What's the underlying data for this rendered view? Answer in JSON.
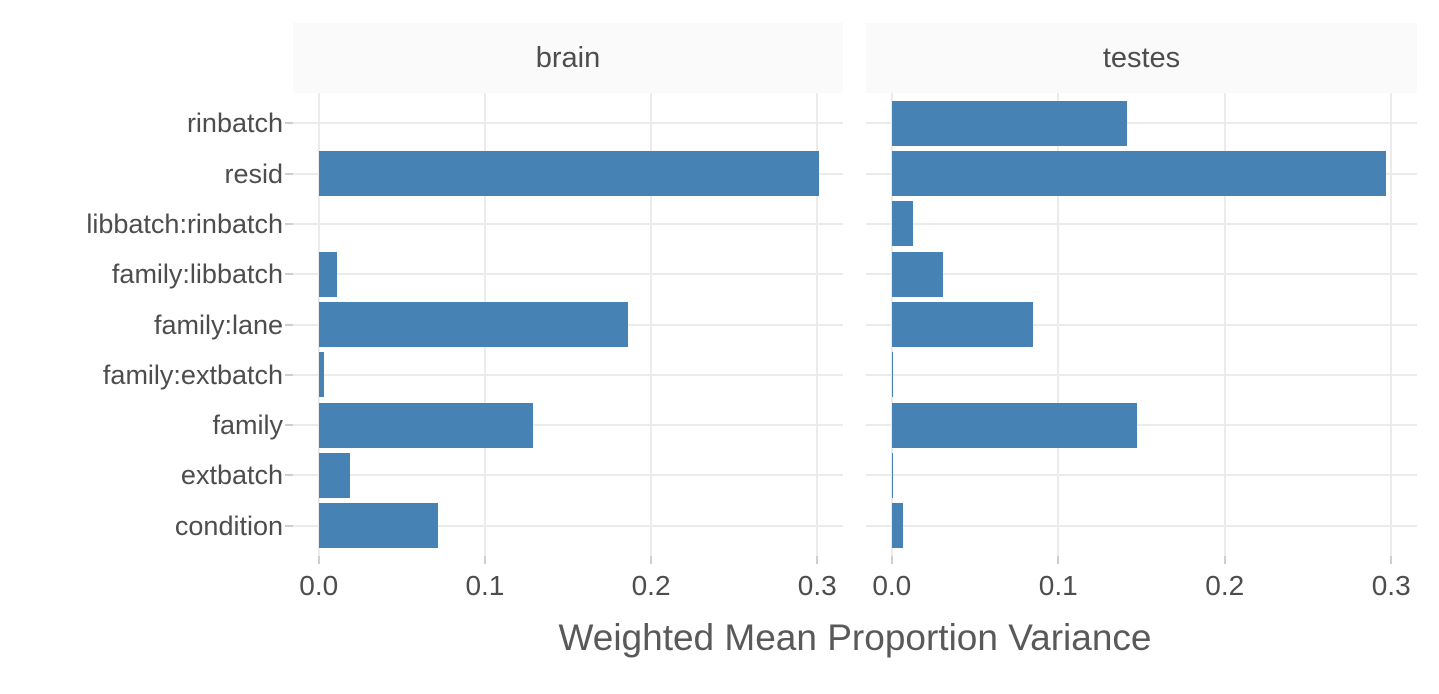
{
  "chart_data": {
    "type": "bar",
    "orientation": "horizontal",
    "title": "",
    "xlabel": "Weighted Mean Proportion Variance",
    "ylabel": "",
    "facets": [
      "brain",
      "testes"
    ],
    "categories_top_to_bottom": [
      "rinbatch",
      "resid",
      "libbatch:rinbatch",
      "family:libbatch",
      "family:lane",
      "family:extbatch",
      "family",
      "extbatch",
      "condition"
    ],
    "series": [
      {
        "name": "brain",
        "values": [
          0,
          0.301,
          0,
          0.011,
          0.186,
          0.003,
          0.129,
          0.019,
          0.072
        ]
      },
      {
        "name": "testes",
        "values": [
          0.141,
          0.297,
          0.013,
          0.031,
          0.085,
          0.001,
          0.147,
          0.001,
          0.007
        ]
      }
    ],
    "x_ticks": [
      0.0,
      0.1,
      0.2,
      0.3
    ],
    "x_tick_labels": [
      "0.0",
      "0.1",
      "0.2",
      "0.3"
    ],
    "xlim": [
      -0.0155,
      0.3155
    ],
    "grid": "major-only",
    "legend": "none",
    "colors": {
      "bar": "#4682b4",
      "grid": "#ebebeb",
      "tick": "#cfcfcf",
      "strip_bg": "#fafafa",
      "label_text": "#4d4d4d",
      "title_text": "#595959"
    }
  }
}
